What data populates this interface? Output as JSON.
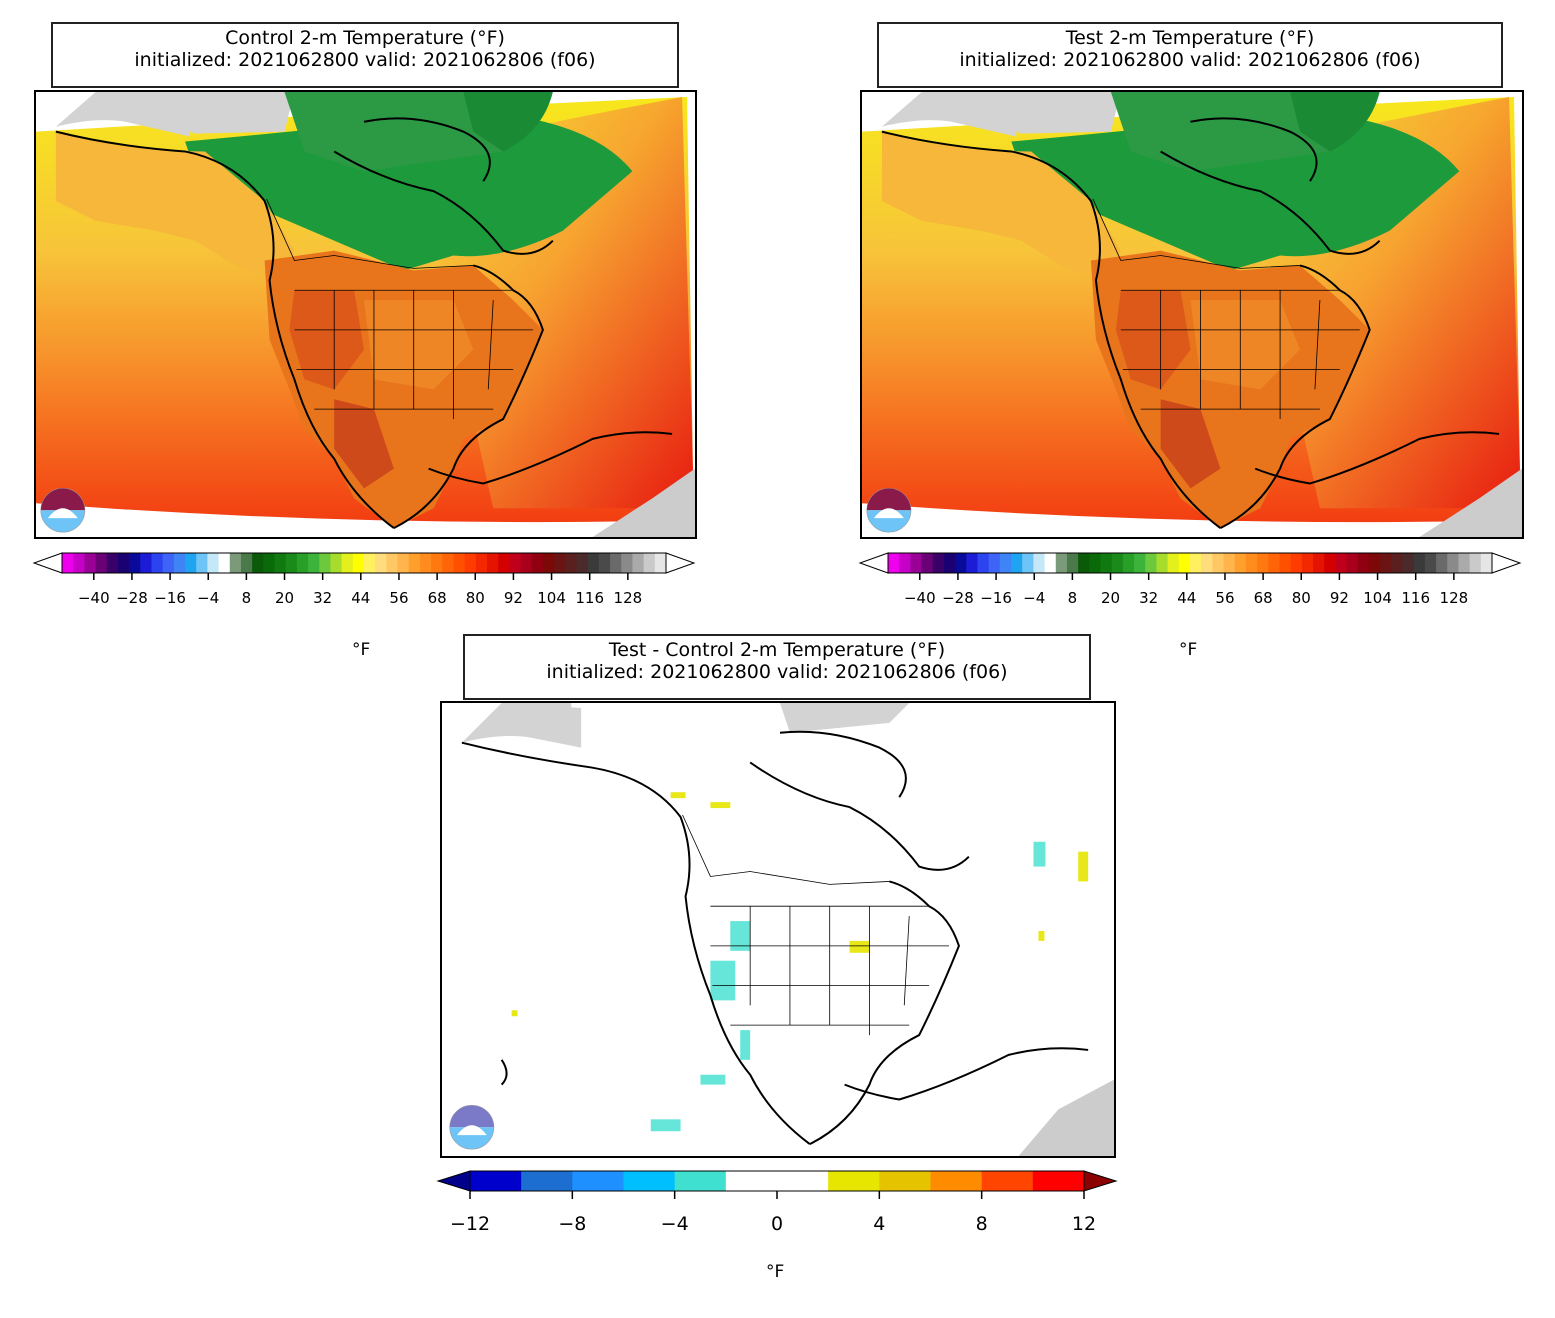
{
  "panels": [
    {
      "id": "control",
      "title_line1": "Control 2-m Temperature (°F)",
      "title_line2": "initialized: 2021062800 valid: 2021062806 (f06)",
      "field_colors": {
        "ocean_north": "#f7e81c",
        "ocean_mid": "#f79a2a",
        "ocean_south": "#f2400f",
        "ocean_tropic": "#e6150f",
        "arctic": "#1d9a3b",
        "land_hot": "#e2601a",
        "land_warm": "#f0922a",
        "land_cool": "#f6c33d",
        "missing": "#d3d3d3"
      },
      "colorbar": {
        "unit": "°F",
        "tick_labels": [
          "−40",
          "−28",
          "−16",
          "−4",
          "8",
          "20",
          "32",
          "44",
          "56",
          "68",
          "80",
          "92",
          "104",
          "116",
          "128"
        ],
        "range": [
          -50,
          140
        ],
        "colors": [
          "#ee00ee",
          "#c600c6",
          "#9a0096",
          "#6a0076",
          "#3a006a",
          "#1a0070",
          "#0a0a9a",
          "#1c1cd6",
          "#2c44f0",
          "#3e63f7",
          "#3e84f7",
          "#1ea4f0",
          "#6ec4f7",
          "#c4e8f7",
          "#ffffff",
          "#7a9a7a",
          "#4a7a4a",
          "#0a5a0a",
          "#0a6a0a",
          "#107a10",
          "#1a8a1a",
          "#28a028",
          "#3cb43c",
          "#6cc83c",
          "#a8dc2c",
          "#e4f01c",
          "#ffff00",
          "#fff060",
          "#ffdc7c",
          "#ffc864",
          "#ffb44c",
          "#ffa02c",
          "#ff8c1c",
          "#ff7810",
          "#ff6408",
          "#ff5000",
          "#ff3c00",
          "#f42800",
          "#e41400",
          "#d40000",
          "#c0001a",
          "#a8001c",
          "#900010",
          "#7c0808",
          "#6a1414",
          "#5a2020",
          "#4a2a2a",
          "#3a3a3a",
          "#4a4a4a",
          "#6a6a6a",
          "#8a8a8a",
          "#aaaaaa",
          "#cacaca",
          "#e6e6e6"
        ]
      }
    },
    {
      "id": "test",
      "title_line1": "Test 2-m Temperature (°F)",
      "title_line2": "initialized: 2021062800 valid: 2021062806 (f06)",
      "colorbar": {
        "unit": "°F",
        "tick_labels": [
          "−40",
          "−28",
          "−16",
          "−4",
          "8",
          "20",
          "32",
          "44",
          "56",
          "68",
          "80",
          "92",
          "104",
          "116",
          "128"
        ],
        "range": [
          -50,
          140
        ]
      }
    },
    {
      "id": "diff",
      "title_line1": "Test - Control 2-m Temperature (°F)",
      "title_line2": "initialized: 2021062800 valid: 2021062806 (f06)",
      "colorbar": {
        "unit": "°F",
        "tick_labels": [
          "−12",
          "−8",
          "−4",
          "0",
          "4",
          "8",
          "12"
        ],
        "range": [
          -12,
          12
        ],
        "colors": [
          "#0000cd",
          "#1c6ed0",
          "#1e90ff",
          "#00bfff",
          "#40e0d0",
          "#ffffff",
          "#ffffff",
          "#e6e600",
          "#e6c300",
          "#ff8c00",
          "#ff4500",
          "#ff0000"
        ],
        "under_color": "#00008b",
        "over_color": "#8b0000"
      }
    }
  ]
}
